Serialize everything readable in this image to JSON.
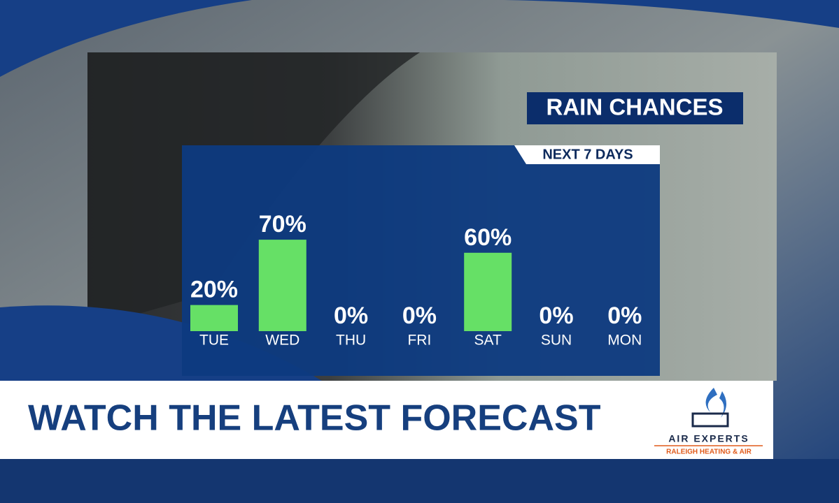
{
  "chart_data": {
    "type": "bar",
    "title": "RAIN CHANCES",
    "subtitle": "NEXT 7 DAYS",
    "categories": [
      "TUE",
      "WED",
      "THU",
      "FRI",
      "SAT",
      "SUN",
      "MON"
    ],
    "values": [
      20,
      70,
      0,
      0,
      60,
      0,
      0
    ],
    "value_labels": [
      "20%",
      "70%",
      "0%",
      "0%",
      "60%",
      "0%",
      "0%"
    ],
    "color": "#66e066"
  },
  "banner": {
    "headline": "WATCH THE LATEST FORECAST",
    "sponsor": "AIR EXPERTS",
    "sponsor_tagline": "RALEIGH HEATING & AIR"
  }
}
